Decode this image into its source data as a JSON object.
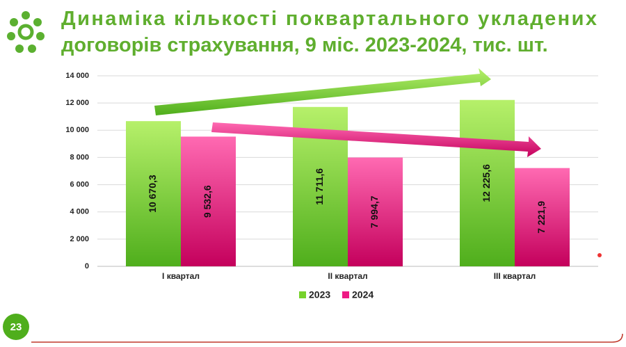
{
  "chart_data": {
    "type": "bar",
    "title": "Динаміка кількості поквартального укладених договорів страхування, 9 міс. 2023-2024, тис. шт.",
    "categories": [
      "І квартал",
      "ІІ квартал",
      "ІІІ квартал"
    ],
    "series": [
      {
        "name": "2023",
        "color": "#77d22c",
        "values": [
          10670.3,
          11711.6,
          12225.6
        ],
        "value_labels": [
          "10 670,3",
          "11 711,6",
          "12 225,6"
        ]
      },
      {
        "name": "2024",
        "color": "#ee1a84",
        "values": [
          9532.6,
          7994.7,
          7221.9
        ],
        "value_labels": [
          "9 532,6",
          "7 994,7",
          "7 221,9"
        ]
      }
    ],
    "ylim": [
      0,
      14000
    ],
    "yticks": [
      0,
      {
        "value": 2000,
        "label": "2 000"
      },
      {
        "value": 4000,
        "label": "4 000"
      },
      {
        "value": 6000,
        "label": "6 000"
      },
      {
        "value": 8000,
        "label": "8 000"
      },
      {
        "value": 10000,
        "label": "10 000"
      },
      {
        "value": 12000,
        "label": "12 000"
      },
      {
        "value": 14000,
        "label": "14 000"
      }
    ],
    "grid": true,
    "legend": "bottom"
  },
  "slide_number": "23"
}
